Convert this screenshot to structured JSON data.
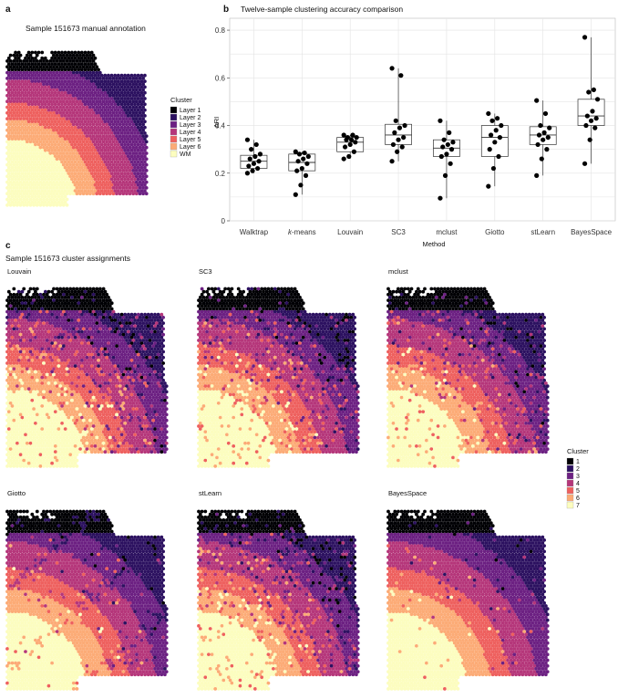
{
  "panel_a": {
    "letter": "a",
    "title": "Sample 151673 manual annotation",
    "legend_title": "Cluster",
    "legend": [
      {
        "label": "Layer 1",
        "color": "#000004"
      },
      {
        "label": "Layer 2",
        "color": "#2c1160"
      },
      {
        "label": "Layer 3",
        "color": "#6c2082"
      },
      {
        "label": "Layer 4",
        "color": "#b5367a"
      },
      {
        "label": "Layer 5",
        "color": "#ee605e"
      },
      {
        "label": "Layer 6",
        "color": "#fcab76"
      },
      {
        "label": "WM",
        "color": "#fcfdbf"
      }
    ]
  },
  "panel_c": {
    "letter": "c",
    "title": "Sample 151673 cluster assignments",
    "maps": [
      "Louvain",
      "SC3",
      "mclust",
      "Giotto",
      "stLearn",
      "BayesSpace"
    ],
    "legend_title": "Cluster",
    "legend": [
      {
        "label": "1",
        "color": "#000004"
      },
      {
        "label": "2",
        "color": "#2c1160"
      },
      {
        "label": "3",
        "color": "#6c2082"
      },
      {
        "label": "4",
        "color": "#b5367a"
      },
      {
        "label": "5",
        "color": "#ee605e"
      },
      {
        "label": "6",
        "color": "#fcab76"
      },
      {
        "label": "7",
        "color": "#fcfdbf"
      }
    ]
  },
  "chart_data": {
    "letter": "b",
    "type": "box",
    "title": "Twelve-sample clustering accuracy comparison",
    "xlabel": "Method",
    "ylabel": "ARI",
    "ylim": [
      0,
      0.85
    ],
    "yticks": [
      "0",
      "0.2",
      "0.4",
      "0.6",
      "0.8"
    ],
    "ytick_values": [
      0,
      0.2,
      0.4,
      0.6,
      0.8
    ],
    "grid": true,
    "categories": [
      "Walktrap",
      "k-means",
      "Louvain",
      "SC3",
      "mclust",
      "Giotto",
      "stLearn",
      "BayesSpace"
    ],
    "category_italic_prefix": {
      "k-means": "k"
    },
    "boxes": [
      {
        "q1": 0.22,
        "median": 0.25,
        "q3": 0.275,
        "lo": 0.2,
        "hi": 0.34
      },
      {
        "q1": 0.21,
        "median": 0.245,
        "q3": 0.28,
        "lo": 0.11,
        "hi": 0.29
      },
      {
        "q1": 0.29,
        "median": 0.33,
        "q3": 0.35,
        "lo": 0.26,
        "hi": 0.36
      },
      {
        "q1": 0.32,
        "median": 0.36,
        "q3": 0.405,
        "lo": 0.25,
        "hi": 0.64
      },
      {
        "q1": 0.27,
        "median": 0.305,
        "q3": 0.34,
        "lo": 0.095,
        "hi": 0.42
      },
      {
        "q1": 0.27,
        "median": 0.35,
        "q3": 0.4,
        "lo": 0.145,
        "hi": 0.45
      },
      {
        "q1": 0.32,
        "median": 0.36,
        "q3": 0.395,
        "lo": 0.19,
        "hi": 0.505
      },
      {
        "q1": 0.4,
        "median": 0.44,
        "q3": 0.51,
        "lo": 0.24,
        "hi": 0.77
      }
    ],
    "points": [
      [
        0.2,
        0.21,
        0.22,
        0.23,
        0.24,
        0.25,
        0.26,
        0.27,
        0.28,
        0.3,
        0.32,
        0.34
      ],
      [
        0.11,
        0.15,
        0.19,
        0.21,
        0.22,
        0.24,
        0.25,
        0.26,
        0.27,
        0.28,
        0.285,
        0.29
      ],
      [
        0.26,
        0.27,
        0.29,
        0.31,
        0.32,
        0.33,
        0.34,
        0.34,
        0.35,
        0.35,
        0.36,
        0.36
      ],
      [
        0.25,
        0.29,
        0.31,
        0.32,
        0.34,
        0.35,
        0.37,
        0.39,
        0.4,
        0.42,
        0.61,
        0.64
      ],
      [
        0.095,
        0.19,
        0.24,
        0.27,
        0.28,
        0.3,
        0.31,
        0.32,
        0.33,
        0.34,
        0.37,
        0.42
      ],
      [
        0.145,
        0.22,
        0.27,
        0.3,
        0.33,
        0.35,
        0.36,
        0.38,
        0.4,
        0.42,
        0.43,
        0.45
      ],
      [
        0.19,
        0.26,
        0.3,
        0.32,
        0.34,
        0.35,
        0.36,
        0.37,
        0.39,
        0.4,
        0.45,
        0.505
      ],
      [
        0.24,
        0.34,
        0.39,
        0.4,
        0.42,
        0.43,
        0.44,
        0.46,
        0.51,
        0.54,
        0.55,
        0.77
      ]
    ]
  }
}
